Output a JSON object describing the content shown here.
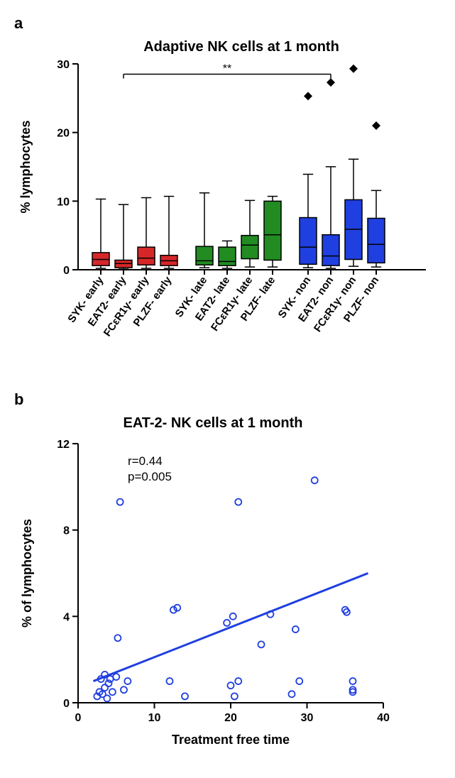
{
  "panel_a": {
    "label": "a",
    "title": "Adaptive NK cells at 1 month",
    "ylabel": "% lymphocytes",
    "ylim": [
      0,
      30
    ],
    "ytick_step": 10,
    "categories": [
      "SYK- early",
      "EAT2- early",
      "FCεR1γ- early",
      "PLZF- early",
      "SYK- late",
      "EAT2- late",
      "FCεR1γ- late",
      "PLZF- late",
      "SYK- non",
      "EAT2- non",
      "FCεR1γ- non",
      "PLZF- non"
    ],
    "colors": [
      "#d62728",
      "#d62728",
      "#d62728",
      "#d62728",
      "#228b22",
      "#228b22",
      "#228b22",
      "#228b22",
      "#1f3fe0",
      "#1f3fe0",
      "#1f3fe0",
      "#1f3fe0"
    ],
    "boxes": [
      {
        "min": 0.2,
        "q1": 0.6,
        "med": 1.5,
        "q3": 2.5,
        "max": 10.3
      },
      {
        "min": 0.1,
        "q1": 0.3,
        "med": 0.9,
        "q3": 1.4,
        "max": 9.5
      },
      {
        "min": 0.2,
        "q1": 0.7,
        "med": 1.7,
        "q3": 3.3,
        "max": 10.5
      },
      {
        "min": 0.2,
        "q1": 0.6,
        "med": 1.3,
        "q3": 2.1,
        "max": 10.7
      },
      {
        "min": 0.3,
        "q1": 0.7,
        "med": 1.3,
        "q3": 3.4,
        "max": 11.2
      },
      {
        "min": 0.2,
        "q1": 0.6,
        "med": 1.2,
        "q3": 3.3,
        "max": 4.2
      },
      {
        "min": 0.4,
        "q1": 1.6,
        "med": 3.6,
        "q3": 5.0,
        "max": 10.1
      },
      {
        "min": 0.4,
        "q1": 1.4,
        "med": 5.1,
        "q3": 10.0,
        "max": 10.7
      },
      {
        "min": 0.3,
        "q1": 0.8,
        "med": 3.3,
        "q3": 7.6,
        "max": 25.3,
        "outlier": 25.3
      },
      {
        "min": 0.2,
        "q1": 0.6,
        "med": 2.0,
        "q3": 5.1,
        "max": 27.3,
        "outlier": 27.3
      },
      {
        "min": 0.5,
        "q1": 1.5,
        "med": 5.9,
        "q3": 10.2,
        "max": 29.3,
        "outlier": 29.3
      },
      {
        "min": 0.4,
        "q1": 1.0,
        "med": 3.7,
        "q3": 7.5,
        "max": 21.0,
        "outlier": 21.0
      }
    ],
    "sig_bar": {
      "from": 1,
      "to": 9,
      "label": "**",
      "y": 28.5
    },
    "title_fontsize": 20,
    "label_fontsize": 18
  },
  "panel_b": {
    "label": "b",
    "title": "EAT-2- NK cells at 1 month",
    "xlabel": "Treatment free time",
    "ylabel": "% of lymphocytes",
    "xlim": [
      0,
      40
    ],
    "ylim": [
      0,
      12
    ],
    "xtick_step": 10,
    "ytick_step": 4,
    "stats": {
      "r": "r=0.44",
      "p": "p=0.005"
    },
    "point_color": "#1f3fe0",
    "line_color": "#1f3fe0",
    "points": [
      [
        2.5,
        0.3
      ],
      [
        2.8,
        0.5
      ],
      [
        3.0,
        1.1
      ],
      [
        3.2,
        0.4
      ],
      [
        3.5,
        0.7
      ],
      [
        3.5,
        1.3
      ],
      [
        3.8,
        0.2
      ],
      [
        4.0,
        0.9
      ],
      [
        4.2,
        1.1
      ],
      [
        4.5,
        0.5
      ],
      [
        5.0,
        1.2
      ],
      [
        5.2,
        3.0
      ],
      [
        5.5,
        9.3
      ],
      [
        6.0,
        0.6
      ],
      [
        6.5,
        1.0
      ],
      [
        12.0,
        1.0
      ],
      [
        12.5,
        4.3
      ],
      [
        13.0,
        4.4
      ],
      [
        14.0,
        0.3
      ],
      [
        19.5,
        3.7
      ],
      [
        20.0,
        0.8
      ],
      [
        20.3,
        4.0
      ],
      [
        20.5,
        0.3
      ],
      [
        21.0,
        1.0
      ],
      [
        21.0,
        9.3
      ],
      [
        24.0,
        2.7
      ],
      [
        25.2,
        4.1
      ],
      [
        28.0,
        0.4
      ],
      [
        28.5,
        3.4
      ],
      [
        29.0,
        1.0
      ],
      [
        31.0,
        10.3
      ],
      [
        35.0,
        4.3
      ],
      [
        35.2,
        4.2
      ],
      [
        36.0,
        0.6
      ],
      [
        36.0,
        0.5
      ],
      [
        36.0,
        1.0
      ]
    ],
    "fit_line": {
      "x1": 2,
      "y1": 1.0,
      "x2": 38,
      "y2": 6.0
    },
    "title_fontsize": 20,
    "label_fontsize": 18
  }
}
